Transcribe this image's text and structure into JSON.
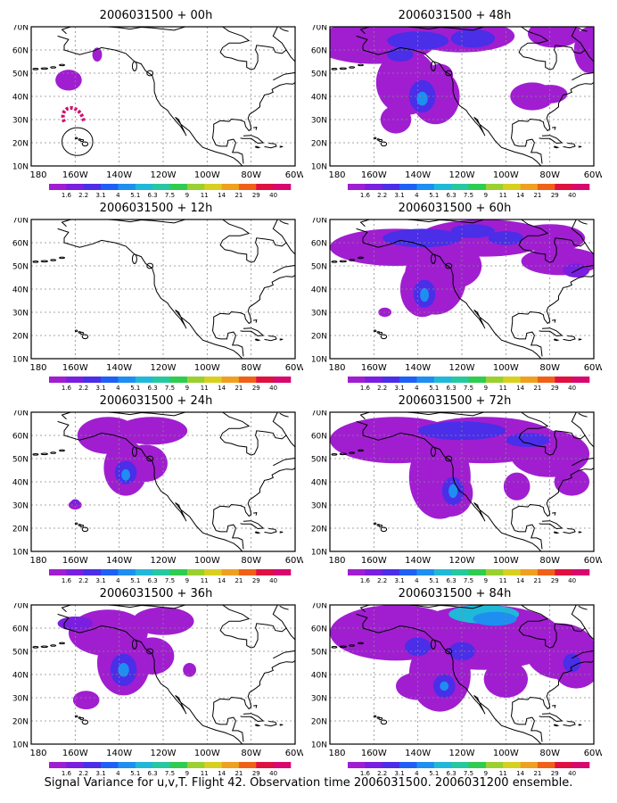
{
  "figure": {
    "caption": "Signal Variance for u,v,T. Flight 42. Observation time 2006031500. 2006031200 ensemble."
  },
  "axes": {
    "lat_labels": [
      "70N",
      "60N",
      "50N",
      "40N",
      "30N",
      "20N",
      "10N"
    ],
    "lon_labels": [
      "180",
      "160W",
      "140W",
      "120W",
      "100W",
      "80W",
      "60W"
    ]
  },
  "legend": {
    "labels": [
      "1.6",
      "2.2",
      "3.1",
      "4",
      "5.1",
      "6.3",
      "7.5",
      "9",
      "11",
      "14",
      "21",
      "29",
      "40"
    ],
    "colors": [
      "#a01ed0",
      "#7a1ee0",
      "#4a2ee8",
      "#1f5ff5",
      "#1e8ef0",
      "#20b8d8",
      "#26c8a0",
      "#2ecc50",
      "#9ad030",
      "#d8d020",
      "#f0a020",
      "#f06018",
      "#e01040",
      "#d80870"
    ]
  },
  "panels": [
    {
      "title": "2006031500 + 00h"
    },
    {
      "title": "2006031500 + 48h"
    },
    {
      "title": "2006031500 + 12h"
    },
    {
      "title": "2006031500 + 60h"
    },
    {
      "title": "2006031500 + 24h"
    },
    {
      "title": "2006031500 + 72h"
    },
    {
      "title": "2006031500 + 36h"
    },
    {
      "title": "2006031500 + 84h"
    }
  ]
}
